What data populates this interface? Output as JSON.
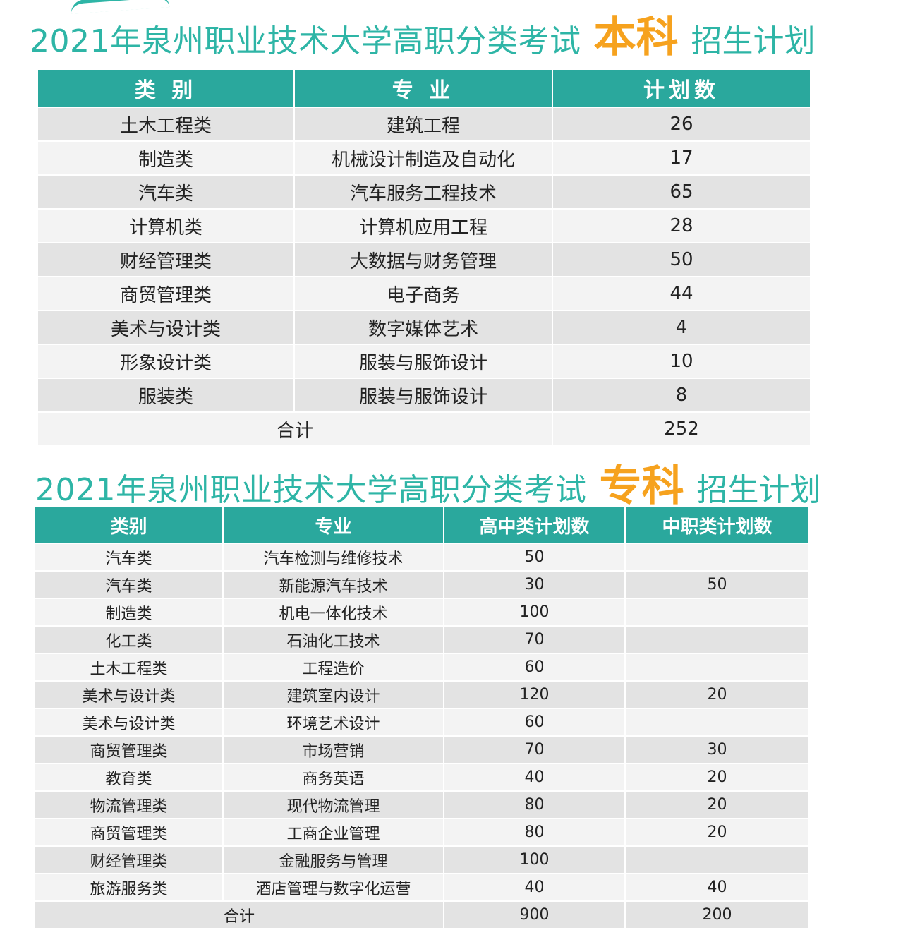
{
  "bachelor": {
    "title_prefix": "2021年泉州职业技术大学高职分类考试",
    "title_highlight": "本科",
    "title_suffix": "招生计划",
    "headers": [
      "类 别",
      "专 业",
      "计划数"
    ],
    "rows": [
      {
        "category": "土木工程类",
        "major": "建筑工程",
        "plan": "26"
      },
      {
        "category": "制造类",
        "major": "机械设计制造及自动化",
        "plan": "17"
      },
      {
        "category": "汽车类",
        "major": "汽车服务工程技术",
        "plan": "65"
      },
      {
        "category": "计算机类",
        "major": "计算机应用工程",
        "plan": "28"
      },
      {
        "category": "财经管理类",
        "major": "大数据与财务管理",
        "plan": "50"
      },
      {
        "category": "商贸管理类",
        "major": "电子商务",
        "plan": "44"
      },
      {
        "category": "美术与设计类",
        "major": "数字媒体艺术",
        "plan": "4"
      },
      {
        "category": "形象设计类",
        "major": "服装与服饰设计",
        "plan": "10"
      },
      {
        "category": "服装类",
        "major": "服装与服饰设计",
        "plan": "8"
      }
    ],
    "total_label": "合计",
    "total_value": "252"
  },
  "associate": {
    "title_prefix": "2021年泉州职业技术大学高职分类考试",
    "title_highlight": "专科",
    "title_suffix": "招生计划",
    "headers": [
      "类别",
      "专业",
      "高中类计划数",
      "中职类计划数"
    ],
    "rows": [
      {
        "category": "汽车类",
        "major": "汽车检测与维修技术",
        "high_school": "50",
        "vocational": ""
      },
      {
        "category": "汽车类",
        "major": "新能源汽车技术",
        "high_school": "30",
        "vocational": "50"
      },
      {
        "category": "制造类",
        "major": "机电一体化技术",
        "high_school": "100",
        "vocational": ""
      },
      {
        "category": "化工类",
        "major": "石油化工技术",
        "high_school": "70",
        "vocational": ""
      },
      {
        "category": "土木工程类",
        "major": "工程造价",
        "high_school": "60",
        "vocational": ""
      },
      {
        "category": "美术与设计类",
        "major": "建筑室内设计",
        "high_school": "120",
        "vocational": "20"
      },
      {
        "category": "美术与设计类",
        "major": "环境艺术设计",
        "high_school": "60",
        "vocational": ""
      },
      {
        "category": "商贸管理类",
        "major": "市场营销",
        "high_school": "70",
        "vocational": "30"
      },
      {
        "category": "教育类",
        "major": "商务英语",
        "high_school": "40",
        "vocational": "20"
      },
      {
        "category": "物流管理类",
        "major": "现代物流管理",
        "high_school": "80",
        "vocational": "20"
      },
      {
        "category": "商贸管理类",
        "major": "工商企业管理",
        "high_school": "80",
        "vocational": "20"
      },
      {
        "category": "财经管理类",
        "major": "金融服务与管理",
        "high_school": "100",
        "vocational": ""
      },
      {
        "category": "旅游服务类",
        "major": "酒店管理与数字化运营",
        "high_school": "40",
        "vocational": "40"
      }
    ],
    "total_label": "合计",
    "total_high_school": "900",
    "total_vocational": "200"
  },
  "colors": {
    "title_teal": "#2eb5a6",
    "highlight_orange": "#f6a21e",
    "header_teal": "#2aa89d",
    "row_dark": "#e3e3e3",
    "row_light": "#f3f3f3"
  }
}
